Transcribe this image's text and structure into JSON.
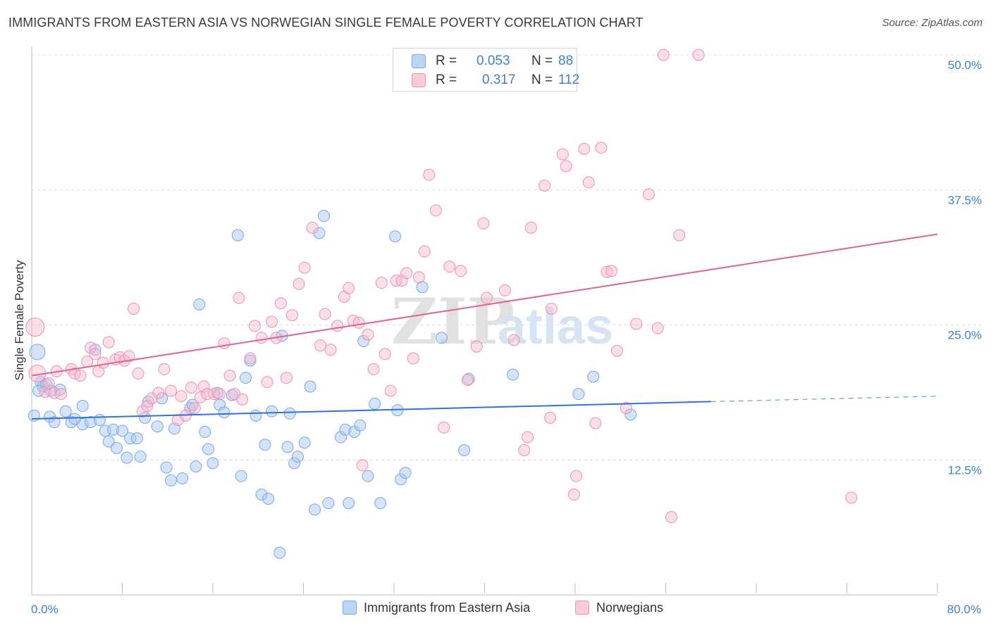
{
  "header": {
    "title": "IMMIGRANTS FROM EASTERN ASIA VS NORWEGIAN SINGLE FEMALE POVERTY CORRELATION CHART",
    "source": "Source: ZipAtlas.com"
  },
  "watermark": {
    "zip": "ZIP",
    "atlas": "atlas"
  },
  "legend": {
    "r_label": "R =",
    "n_label": "N =",
    "blue": {
      "r": "0.053",
      "n": "88"
    },
    "pink": {
      "r": "0.317",
      "n": "112"
    }
  },
  "colors": {
    "blue_fill": "#a9c8f2",
    "blue_stroke": "#7aa8e6",
    "blue_line": "#2f74d0",
    "pink_fill": "#f7b8cc",
    "pink_stroke": "#eb93b0",
    "pink_line": "#e0648e",
    "tick_label": "#3f7fd6",
    "grid": "#dcdcdc"
  },
  "chart_data": {
    "type": "scatter",
    "title": "IMMIGRANTS FROM EASTERN ASIA VS NORWEGIAN SINGLE FEMALE POVERTY CORRELATION CHART",
    "xlabel": "",
    "ylabel": "Single Female Poverty",
    "xlim": [
      0,
      80
    ],
    "ylim": [
      0,
      50
    ],
    "x_tick_labels": [
      "0.0%",
      "80.0%"
    ],
    "y_ticks": [
      12.5,
      25.0,
      37.5,
      50.0
    ],
    "y_tick_labels": [
      "12.5%",
      "25.0%",
      "37.5%",
      "50.0%"
    ],
    "grid": true,
    "legend_position": "top-center",
    "series": [
      {
        "name": "Immigrants from Eastern Asia",
        "color": "#a9c8f2",
        "trend": {
          "x": [
            0,
            60
          ],
          "y": [
            16.3,
            17.9
          ],
          "dashed_to": [
            80,
            18.4
          ]
        },
        "points": [
          [
            0.5,
            22.5
          ],
          [
            0.8,
            19.7
          ],
          [
            1.0,
            19.3
          ],
          [
            1.3,
            19.5
          ],
          [
            1.6,
            16.5
          ],
          [
            2.5,
            19.0
          ],
          [
            2.0,
            16.0
          ],
          [
            3.0,
            17.0
          ],
          [
            3.5,
            16.0
          ],
          [
            4.5,
            15.8
          ],
          [
            4.5,
            17.5
          ],
          [
            5.2,
            16.0
          ],
          [
            5.6,
            22.7
          ],
          [
            6.0,
            16.2
          ],
          [
            6.5,
            15.2
          ],
          [
            6.8,
            14.2
          ],
          [
            7.2,
            15.3
          ],
          [
            7.5,
            13.6
          ],
          [
            8.0,
            15.2
          ],
          [
            8.4,
            12.7
          ],
          [
            8.7,
            14.5
          ],
          [
            9.3,
            14.5
          ],
          [
            9.6,
            12.8
          ],
          [
            10.0,
            16.4
          ],
          [
            10.3,
            17.9
          ],
          [
            11.1,
            15.6
          ],
          [
            11.5,
            18.2
          ],
          [
            11.9,
            11.8
          ],
          [
            12.3,
            10.6
          ],
          [
            12.6,
            15.4
          ],
          [
            13.3,
            10.8
          ],
          [
            14.0,
            17.3
          ],
          [
            14.2,
            17.6
          ],
          [
            14.5,
            11.9
          ],
          [
            14.8,
            26.9
          ],
          [
            15.3,
            15.1
          ],
          [
            15.6,
            13.5
          ],
          [
            16.0,
            12.2
          ],
          [
            16.4,
            18.7
          ],
          [
            16.6,
            17.6
          ],
          [
            17.0,
            16.9
          ],
          [
            17.7,
            18.5
          ],
          [
            18.2,
            33.3
          ],
          [
            18.5,
            11.0
          ],
          [
            18.9,
            20.1
          ],
          [
            19.3,
            21.7
          ],
          [
            19.8,
            16.6
          ],
          [
            20.3,
            9.3
          ],
          [
            20.6,
            13.9
          ],
          [
            20.9,
            8.9
          ],
          [
            21.2,
            17.0
          ],
          [
            21.9,
            3.9
          ],
          [
            22.1,
            24.0
          ],
          [
            22.6,
            13.7
          ],
          [
            22.8,
            16.8
          ],
          [
            23.2,
            12.2
          ],
          [
            23.5,
            12.8
          ],
          [
            24.1,
            14.1
          ],
          [
            24.6,
            19.3
          ],
          [
            25.0,
            7.9
          ],
          [
            25.4,
            33.5
          ],
          [
            25.8,
            35.1
          ],
          [
            26.2,
            8.5
          ],
          [
            27.3,
            14.6
          ],
          [
            27.7,
            15.3
          ],
          [
            28.0,
            8.5
          ],
          [
            28.5,
            15.1
          ],
          [
            29.0,
            15.7
          ],
          [
            29.3,
            23.5
          ],
          [
            29.7,
            11.0
          ],
          [
            30.3,
            17.7
          ],
          [
            30.8,
            8.5
          ],
          [
            32.1,
            33.2
          ],
          [
            32.3,
            17.1
          ],
          [
            32.6,
            10.7
          ],
          [
            33.0,
            11.3
          ],
          [
            34.5,
            28.5
          ],
          [
            36.2,
            23.8
          ],
          [
            38.2,
            13.4
          ],
          [
            38.6,
            20.0
          ],
          [
            42.5,
            20.4
          ],
          [
            48.3,
            18.6
          ],
          [
            49.6,
            20.2
          ],
          [
            52.9,
            16.7
          ],
          [
            0.2,
            16.6
          ],
          [
            0.6,
            18.9
          ],
          [
            1.7,
            18.9
          ],
          [
            3.8,
            16.3
          ]
        ]
      },
      {
        "name": "Norwegians",
        "color": "#f7b8cc",
        "trend": {
          "x": [
            0,
            80
          ],
          "y": [
            20.3,
            33.4
          ]
        },
        "points": [
          [
            0.3,
            24.8
          ],
          [
            0.5,
            20.5
          ],
          [
            1.2,
            18.8
          ],
          [
            1.5,
            19.6
          ],
          [
            2.0,
            18.7
          ],
          [
            2.2,
            20.7
          ],
          [
            2.6,
            18.6
          ],
          [
            3.5,
            20.9
          ],
          [
            3.8,
            20.5
          ],
          [
            4.3,
            20.3
          ],
          [
            4.9,
            21.6
          ],
          [
            5.2,
            22.9
          ],
          [
            5.6,
            22.3
          ],
          [
            5.9,
            20.7
          ],
          [
            6.3,
            21.5
          ],
          [
            6.8,
            23.4
          ],
          [
            7.4,
            21.8
          ],
          [
            7.8,
            22.0
          ],
          [
            8.2,
            21.7
          ],
          [
            8.6,
            22.1
          ],
          [
            9.0,
            26.5
          ],
          [
            9.4,
            20.5
          ],
          [
            9.8,
            17.0
          ],
          [
            10.2,
            17.5
          ],
          [
            10.6,
            18.2
          ],
          [
            11.2,
            18.7
          ],
          [
            11.7,
            20.9
          ],
          [
            12.3,
            18.9
          ],
          [
            12.9,
            16.2
          ],
          [
            13.2,
            18.4
          ],
          [
            13.6,
            16.6
          ],
          [
            14.1,
            19.2
          ],
          [
            14.4,
            17.3
          ],
          [
            14.9,
            18.3
          ],
          [
            15.2,
            19.3
          ],
          [
            15.5,
            18.6
          ],
          [
            16.1,
            18.6
          ],
          [
            16.6,
            18.6
          ],
          [
            17.0,
            23.3
          ],
          [
            17.5,
            20.3
          ],
          [
            17.9,
            18.6
          ],
          [
            18.3,
            27.5
          ],
          [
            18.6,
            18.1
          ],
          [
            19.3,
            21.9
          ],
          [
            19.7,
            24.9
          ],
          [
            20.3,
            23.8
          ],
          [
            20.8,
            19.7
          ],
          [
            21.2,
            25.3
          ],
          [
            21.6,
            23.8
          ],
          [
            22.0,
            27.0
          ],
          [
            22.5,
            20.1
          ],
          [
            23.0,
            25.9
          ],
          [
            23.6,
            28.8
          ],
          [
            24.1,
            30.3
          ],
          [
            24.8,
            34.0
          ],
          [
            25.5,
            23.1
          ],
          [
            25.9,
            26.0
          ],
          [
            26.4,
            22.7
          ],
          [
            27.0,
            24.9
          ],
          [
            27.6,
            27.6
          ],
          [
            28.0,
            28.4
          ],
          [
            28.4,
            25.4
          ],
          [
            28.9,
            25.2
          ],
          [
            29.2,
            12.0
          ],
          [
            29.7,
            24.1
          ],
          [
            30.2,
            20.9
          ],
          [
            30.9,
            28.9
          ],
          [
            31.2,
            22.3
          ],
          [
            31.7,
            18.9
          ],
          [
            32.2,
            29.1
          ],
          [
            32.7,
            29.1
          ],
          [
            33.1,
            29.8
          ],
          [
            33.7,
            21.9
          ],
          [
            34.2,
            29.4
          ],
          [
            34.7,
            31.8
          ],
          [
            35.1,
            38.9
          ],
          [
            35.7,
            35.6
          ],
          [
            36.4,
            15.5
          ],
          [
            36.9,
            30.4
          ],
          [
            37.9,
            30.0
          ],
          [
            38.5,
            19.9
          ],
          [
            39.3,
            23.0
          ],
          [
            39.9,
            34.4
          ],
          [
            40.2,
            27.5
          ],
          [
            41.8,
            28.2
          ],
          [
            42.6,
            23.6
          ],
          [
            43.5,
            13.4
          ],
          [
            43.8,
            14.6
          ],
          [
            44.1,
            34.0
          ],
          [
            45.3,
            37.9
          ],
          [
            45.8,
            16.4
          ],
          [
            45.9,
            26.5
          ],
          [
            46.9,
            40.8
          ],
          [
            47.2,
            39.7
          ],
          [
            47.9,
            9.3
          ],
          [
            48.1,
            11.0
          ],
          [
            48.8,
            41.3
          ],
          [
            49.2,
            38.2
          ],
          [
            49.8,
            15.9
          ],
          [
            50.3,
            41.4
          ],
          [
            50.8,
            29.9
          ],
          [
            51.2,
            30.0
          ],
          [
            51.7,
            22.6
          ],
          [
            52.5,
            17.3
          ],
          [
            53.4,
            25.1
          ],
          [
            54.5,
            37.1
          ],
          [
            55.3,
            24.7
          ],
          [
            55.8,
            50.0
          ],
          [
            56.5,
            7.2
          ],
          [
            57.2,
            33.3
          ],
          [
            58.9,
            50.0
          ],
          [
            72.4,
            9.0
          ]
        ]
      }
    ]
  },
  "axis_labels": {
    "x_left": "0.0%",
    "x_right": "80.0%",
    "y": "Single Female Poverty"
  }
}
